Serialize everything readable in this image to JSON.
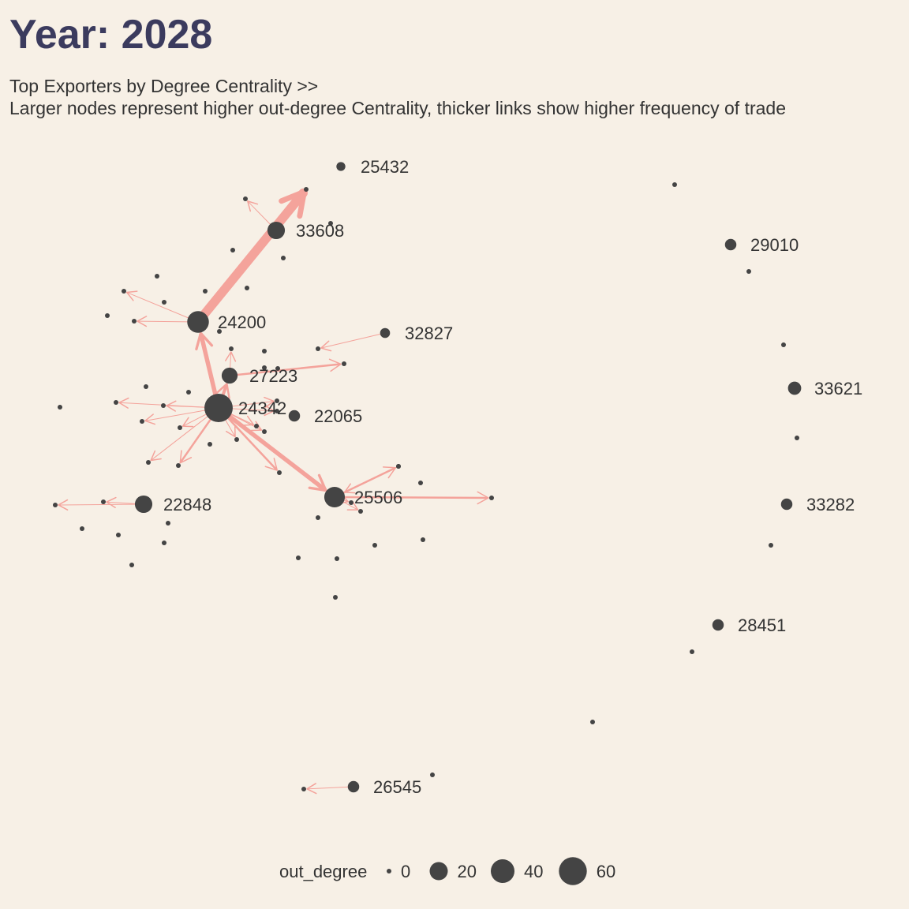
{
  "title": "Year: 2028",
  "subtitle_line1": "Top Exporters by Degree Centrality >>",
  "subtitle_line2": "Larger nodes represent higher out-degree Centrality, thicker links show higher frequency of trade",
  "colors": {
    "background": "#f7f0e6",
    "title": "#3b3b5e",
    "node": "#444444",
    "edge": "#f4a39b",
    "text": "#333333"
  },
  "legend": {
    "title": "out_degree",
    "entries": [
      {
        "label": "0",
        "value": 0
      },
      {
        "label": "20",
        "value": 20
      },
      {
        "label": "40",
        "value": 40
      },
      {
        "label": "60",
        "value": 60
      }
    ]
  },
  "network": {
    "nodes": [
      {
        "id": "25432",
        "label": "25432",
        "out_degree": 2
      },
      {
        "id": "33608",
        "label": "33608",
        "out_degree": 18
      },
      {
        "id": "29010",
        "label": "29010",
        "out_degree": 5
      },
      {
        "id": "24200",
        "label": "24200",
        "out_degree": 32
      },
      {
        "id": "32827",
        "label": "32827",
        "out_degree": 3
      },
      {
        "id": "27223",
        "label": "27223",
        "out_degree": 14
      },
      {
        "id": "33621",
        "label": "33621",
        "out_degree": 8
      },
      {
        "id": "24342",
        "label": "24342",
        "out_degree": 62
      },
      {
        "id": "22065",
        "label": "22065",
        "out_degree": 5
      },
      {
        "id": "22848",
        "label": "22848",
        "out_degree": 18
      },
      {
        "id": "25506",
        "label": "25506",
        "out_degree": 28
      },
      {
        "id": "33282",
        "label": "33282",
        "out_degree": 5
      },
      {
        "id": "28451",
        "label": "28451",
        "out_degree": 5
      },
      {
        "id": "26545",
        "label": "26545",
        "out_degree": 5
      },
      {
        "id": "n1"
      },
      {
        "id": "n2"
      },
      {
        "id": "n3"
      },
      {
        "id": "n4"
      },
      {
        "id": "n5"
      },
      {
        "id": "n6"
      },
      {
        "id": "n7"
      },
      {
        "id": "n8"
      },
      {
        "id": "n9"
      },
      {
        "id": "n10"
      },
      {
        "id": "n11"
      },
      {
        "id": "n12"
      },
      {
        "id": "n13"
      },
      {
        "id": "n14"
      },
      {
        "id": "n15"
      },
      {
        "id": "n16"
      },
      {
        "id": "n17"
      },
      {
        "id": "n18"
      },
      {
        "id": "n19"
      },
      {
        "id": "n20"
      },
      {
        "id": "n21"
      },
      {
        "id": "n22"
      },
      {
        "id": "n23"
      },
      {
        "id": "n24"
      },
      {
        "id": "n25"
      },
      {
        "id": "n26"
      },
      {
        "id": "n27"
      },
      {
        "id": "n28"
      },
      {
        "id": "n29"
      },
      {
        "id": "n30"
      },
      {
        "id": "n31"
      },
      {
        "id": "n32"
      },
      {
        "id": "n33"
      },
      {
        "id": "n34"
      },
      {
        "id": "n35"
      },
      {
        "id": "n36"
      },
      {
        "id": "n37"
      },
      {
        "id": "n38"
      },
      {
        "id": "n39"
      },
      {
        "id": "n40"
      },
      {
        "id": "n41"
      },
      {
        "id": "n42"
      },
      {
        "id": "n43"
      },
      {
        "id": "n44"
      },
      {
        "id": "n45"
      },
      {
        "id": "n46"
      },
      {
        "id": "n47"
      },
      {
        "id": "n48"
      },
      {
        "id": "n49"
      },
      {
        "id": "n50"
      },
      {
        "id": "n51"
      },
      {
        "id": "n52"
      },
      {
        "id": "n53"
      },
      {
        "id": "n54"
      },
      {
        "id": "n55"
      },
      {
        "id": "n56"
      },
      {
        "id": "n57"
      },
      {
        "id": "n58"
      },
      {
        "id": "n59"
      },
      {
        "id": "n60"
      },
      {
        "id": "n61"
      },
      {
        "id": "n62"
      }
    ],
    "edges": [
      {
        "source": "24200",
        "target": "n2",
        "weight": 8
      },
      {
        "source": "24342",
        "target": "24200",
        "weight": 4
      },
      {
        "source": "24342",
        "target": "27223",
        "weight": 3
      },
      {
        "source": "24342",
        "target": "25506",
        "weight": 4
      },
      {
        "source": "24342",
        "target": "n27",
        "weight": 2
      },
      {
        "source": "24342",
        "target": "n26",
        "weight": 1
      },
      {
        "source": "24342",
        "target": "n25",
        "weight": 1
      },
      {
        "source": "24342",
        "target": "n24",
        "weight": 1
      },
      {
        "source": "24342",
        "target": "n22",
        "weight": 1
      },
      {
        "source": "24342",
        "target": "n31",
        "weight": 1
      },
      {
        "source": "24342",
        "target": "n32",
        "weight": 1
      },
      {
        "source": "24342",
        "target": "n33",
        "weight": 1
      },
      {
        "source": "24342",
        "target": "n29",
        "weight": 2
      },
      {
        "source": "24342",
        "target": "n30",
        "weight": 1
      },
      {
        "source": "24342",
        "target": "n34",
        "weight": 1
      },
      {
        "source": "24342",
        "target": "n35",
        "weight": 1
      },
      {
        "source": "27223",
        "target": "n19",
        "weight": 2
      },
      {
        "source": "27223",
        "target": "n15",
        "weight": 1
      },
      {
        "source": "33608",
        "target": "n1",
        "weight": 1
      },
      {
        "source": "24200",
        "target": "n8",
        "weight": 1
      },
      {
        "source": "24200",
        "target": "n11",
        "weight": 1
      },
      {
        "source": "32827",
        "target": "n14",
        "weight": 1
      },
      {
        "source": "25506",
        "target": "n38",
        "weight": 2
      },
      {
        "source": "25506",
        "target": "n40",
        "weight": 2
      },
      {
        "source": "25506",
        "target": "n41",
        "weight": 1
      },
      {
        "source": "25506",
        "target": "n42",
        "weight": 1
      },
      {
        "source": "n36",
        "target": "25506",
        "weight": 1
      },
      {
        "source": "22848",
        "target": "n44",
        "weight": 1
      },
      {
        "source": "22848",
        "target": "n43",
        "weight": 1
      },
      {
        "source": "26545",
        "target": "n62",
        "weight": 1
      }
    ]
  }
}
